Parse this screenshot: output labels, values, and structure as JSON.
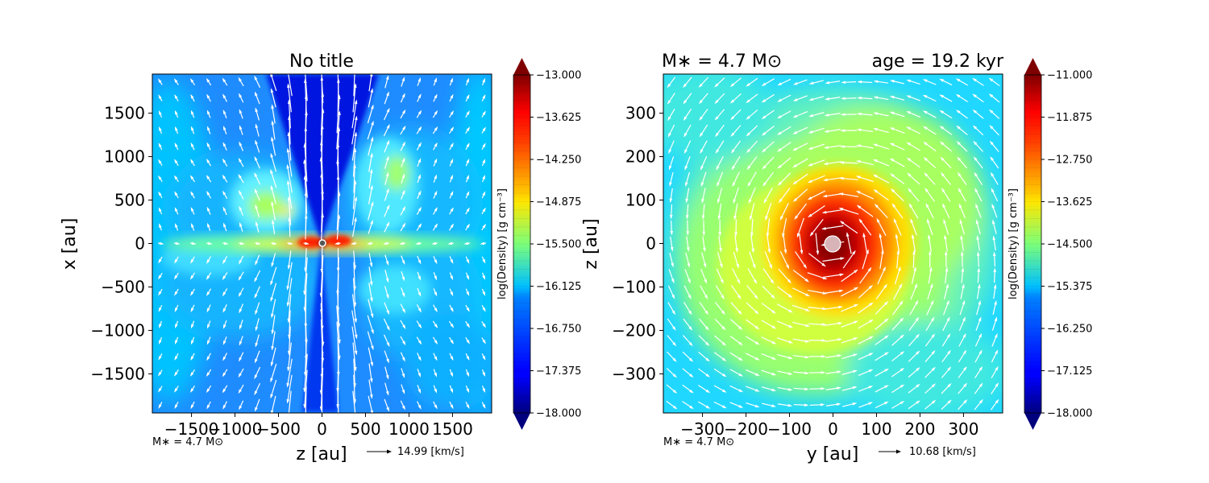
{
  "figure": {
    "colors": {
      "quiver": "#ffffff",
      "sink_left": "#555555",
      "sink_right": "#d8b4b8"
    }
  },
  "chart_data": [
    {
      "type": "heatmap",
      "title": "No title",
      "xlabel": "z [au]",
      "ylabel": "x [au]",
      "xlim": [
        -1950,
        1950
      ],
      "ylim": [
        -1950,
        1950
      ],
      "x_ticks": [
        -1500,
        -1000,
        -500,
        0,
        500,
        1000,
        1500
      ],
      "x_tick_labels": [
        "−1500",
        "−1000",
        "−500",
        "0",
        "500",
        "1000",
        "1500"
      ],
      "y_ticks": [
        1500,
        1000,
        500,
        0,
        -500,
        -1000,
        -1500
      ],
      "y_tick_labels": [
        "1500",
        "1000",
        "500",
        "0",
        "−500",
        "−1000",
        "−1500"
      ],
      "colorbar": {
        "label": "log(Density) [g cm⁻³]",
        "min": -18.0,
        "max": -13.0,
        "extend": "both",
        "ticks": [
          -13.0,
          -13.625,
          -14.25,
          -14.875,
          -15.5,
          -16.125,
          -16.75,
          -17.375,
          -18.0
        ],
        "tick_labels": [
          "−13.000",
          "−13.625",
          "−14.250",
          "−14.875",
          "−15.500",
          "−16.125",
          "−16.750",
          "−17.375",
          "−18.000"
        ]
      },
      "mass_label": "M∗ = 4.7 M⊙",
      "quiver_key": "14.99 [km/s]",
      "geometry": "edge-on: outflow cavity along x, dense disk along z"
    },
    {
      "type": "heatmap",
      "title_left": "M∗ = 4.7 M⊙",
      "title_right": "age = 19.2 kyr",
      "xlabel": "y [au]",
      "ylabel": "z [au]",
      "xlim": [
        -390,
        390
      ],
      "ylim": [
        -390,
        390
      ],
      "x_ticks": [
        -300,
        -200,
        -100,
        0,
        100,
        200,
        300
      ],
      "x_tick_labels": [
        "−300",
        "−200",
        "−100",
        "0",
        "100",
        "200",
        "300"
      ],
      "y_ticks": [
        300,
        200,
        100,
        0,
        -100,
        -200,
        -300
      ],
      "y_tick_labels": [
        "300",
        "200",
        "100",
        "0",
        "−100",
        "−200",
        "−300"
      ],
      "colorbar": {
        "label": "log(Density) [g cm⁻³]",
        "min": -18.0,
        "max": -11.0,
        "extend": "both",
        "ticks": [
          -11.0,
          -11.875,
          -12.75,
          -13.625,
          -14.5,
          -15.375,
          -16.25,
          -17.125,
          -18.0
        ],
        "tick_labels": [
          "−11.000",
          "−11.875",
          "−12.750",
          "−13.625",
          "−14.500",
          "−15.375",
          "−16.250",
          "−17.125",
          "−18.000"
        ]
      },
      "mass_label": "M∗ = 4.7 M⊙",
      "quiver_key": "10.68 [km/s]",
      "geometry": "face-on: rotating disk, counter-clockwise flow"
    }
  ]
}
